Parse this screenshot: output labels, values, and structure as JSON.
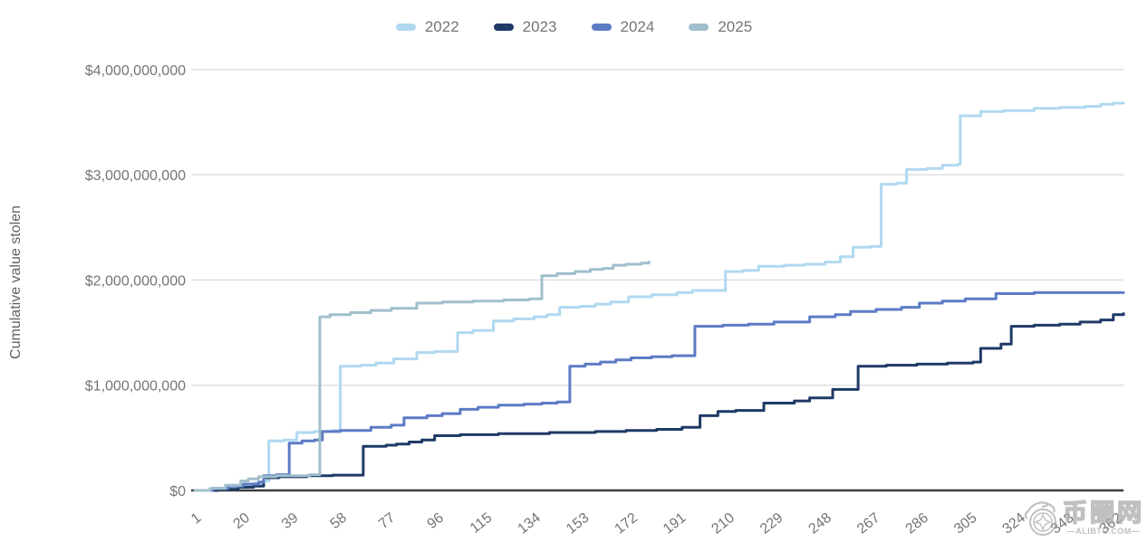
{
  "legend": {
    "items": [
      {
        "label": "2022",
        "color": "#b0d9f0"
      },
      {
        "label": "2023",
        "color": "#1f3a66"
      },
      {
        "label": "2024",
        "color": "#5d7bc5"
      },
      {
        "label": "2025",
        "color": "#a0bfcc"
      }
    ]
  },
  "chart_data": {
    "type": "line",
    "subtype": "step-after",
    "title": "",
    "xlabel": "",
    "ylabel": "Cumulative value stolen",
    "values_unit": "USD billions",
    "xlim": [
      1,
      365
    ],
    "ylim_billions": [
      0,
      4
    ],
    "grid": "horizontal",
    "legend_position": "top-center",
    "x_ticks": [
      1,
      20,
      39,
      58,
      77,
      96,
      115,
      134,
      153,
      172,
      191,
      210,
      229,
      248,
      267,
      286,
      305,
      324,
      343,
      362
    ],
    "y_ticks": [
      {
        "value_billions": 0,
        "label": "$0"
      },
      {
        "value_billions": 1,
        "label": "$1,000,000,000"
      },
      {
        "value_billions": 2,
        "label": "$2,000,000,000"
      },
      {
        "value_billions": 3,
        "label": "$3,000,000,000"
      },
      {
        "value_billions": 4,
        "label": "$4,000,000,000"
      }
    ],
    "series": [
      {
        "name": "2022",
        "color": "#b0d9f0",
        "points_day_value_billions": [
          [
            1,
            0
          ],
          [
            8,
            0.02
          ],
          [
            15,
            0.03
          ],
          [
            20,
            0.05
          ],
          [
            24,
            0.07
          ],
          [
            28,
            0.09
          ],
          [
            30,
            0.47
          ],
          [
            36,
            0.48
          ],
          [
            41,
            0.55
          ],
          [
            48,
            0.56
          ],
          [
            55,
            0.57
          ],
          [
            58,
            1.18
          ],
          [
            66,
            1.19
          ],
          [
            72,
            1.21
          ],
          [
            79,
            1.25
          ],
          [
            88,
            1.31
          ],
          [
            95,
            1.32
          ],
          [
            104,
            1.5
          ],
          [
            110,
            1.52
          ],
          [
            118,
            1.61
          ],
          [
            126,
            1.63
          ],
          [
            134,
            1.65
          ],
          [
            139,
            1.67
          ],
          [
            144,
            1.74
          ],
          [
            152,
            1.75
          ],
          [
            158,
            1.77
          ],
          [
            164,
            1.79
          ],
          [
            171,
            1.84
          ],
          [
            180,
            1.86
          ],
          [
            190,
            1.88
          ],
          [
            196,
            1.9
          ],
          [
            209,
            2.08
          ],
          [
            216,
            2.09
          ],
          [
            222,
            2.13
          ],
          [
            232,
            2.14
          ],
          [
            240,
            2.15
          ],
          [
            248,
            2.17
          ],
          [
            254,
            2.22
          ],
          [
            259,
            2.31
          ],
          [
            266,
            2.32
          ],
          [
            270,
            2.91
          ],
          [
            276,
            2.92
          ],
          [
            280,
            3.05
          ],
          [
            288,
            3.06
          ],
          [
            294,
            3.09
          ],
          [
            300,
            3.1
          ],
          [
            301,
            3.56
          ],
          [
            309,
            3.6
          ],
          [
            318,
            3.61
          ],
          [
            330,
            3.63
          ],
          [
            340,
            3.64
          ],
          [
            350,
            3.65
          ],
          [
            356,
            3.67
          ],
          [
            361,
            3.68
          ],
          [
            365,
            3.68
          ]
        ]
      },
      {
        "name": "2023",
        "color": "#1f3a66",
        "points_day_value_billions": [
          [
            1,
            0
          ],
          [
            10,
            0.01
          ],
          [
            18,
            0.03
          ],
          [
            24,
            0.04
          ],
          [
            28,
            0.12
          ],
          [
            34,
            0.13
          ],
          [
            45,
            0.14
          ],
          [
            55,
            0.145
          ],
          [
            67,
            0.42
          ],
          [
            76,
            0.43
          ],
          [
            80,
            0.44
          ],
          [
            85,
            0.46
          ],
          [
            90,
            0.48
          ],
          [
            95,
            0.52
          ],
          [
            105,
            0.53
          ],
          [
            120,
            0.54
          ],
          [
            140,
            0.55
          ],
          [
            158,
            0.56
          ],
          [
            170,
            0.57
          ],
          [
            182,
            0.58
          ],
          [
            192,
            0.6
          ],
          [
            199,
            0.71
          ],
          [
            206,
            0.75
          ],
          [
            213,
            0.76
          ],
          [
            224,
            0.83
          ],
          [
            236,
            0.85
          ],
          [
            242,
            0.88
          ],
          [
            251,
            0.96
          ],
          [
            261,
            1.18
          ],
          [
            272,
            1.19
          ],
          [
            284,
            1.2
          ],
          [
            296,
            1.21
          ],
          [
            306,
            1.22
          ],
          [
            309,
            1.35
          ],
          [
            317,
            1.39
          ],
          [
            321,
            1.56
          ],
          [
            330,
            1.57
          ],
          [
            340,
            1.58
          ],
          [
            348,
            1.6
          ],
          [
            356,
            1.62
          ],
          [
            361,
            1.67
          ],
          [
            365,
            1.68
          ]
        ]
      },
      {
        "name": "2024",
        "color": "#5d7bc5",
        "points_day_value_billions": [
          [
            1,
            0
          ],
          [
            8,
            0.02
          ],
          [
            14,
            0.04
          ],
          [
            20,
            0.06
          ],
          [
            26,
            0.08
          ],
          [
            28,
            0.14
          ],
          [
            33,
            0.15
          ],
          [
            38,
            0.45
          ],
          [
            43,
            0.47
          ],
          [
            48,
            0.48
          ],
          [
            51,
            0.56
          ],
          [
            58,
            0.57
          ],
          [
            70,
            0.6
          ],
          [
            78,
            0.62
          ],
          [
            83,
            0.69
          ],
          [
            92,
            0.71
          ],
          [
            98,
            0.73
          ],
          [
            105,
            0.77
          ],
          [
            112,
            0.79
          ],
          [
            120,
            0.81
          ],
          [
            130,
            0.82
          ],
          [
            137,
            0.83
          ],
          [
            143,
            0.84
          ],
          [
            148,
            1.18
          ],
          [
            154,
            1.2
          ],
          [
            160,
            1.22
          ],
          [
            166,
            1.24
          ],
          [
            172,
            1.26
          ],
          [
            180,
            1.27
          ],
          [
            188,
            1.28
          ],
          [
            197,
            1.56
          ],
          [
            208,
            1.57
          ],
          [
            218,
            1.58
          ],
          [
            228,
            1.6
          ],
          [
            242,
            1.65
          ],
          [
            252,
            1.67
          ],
          [
            258,
            1.7
          ],
          [
            268,
            1.72
          ],
          [
            278,
            1.74
          ],
          [
            285,
            1.78
          ],
          [
            294,
            1.8
          ],
          [
            303,
            1.82
          ],
          [
            315,
            1.87
          ],
          [
            330,
            1.88
          ],
          [
            365,
            1.88
          ]
        ]
      },
      {
        "name": "2025",
        "color": "#a0bfcc",
        "points_day_value_billions": [
          [
            1,
            0
          ],
          [
            7,
            0.02
          ],
          [
            13,
            0.05
          ],
          [
            19,
            0.09
          ],
          [
            22,
            0.11
          ],
          [
            26,
            0.13
          ],
          [
            33,
            0.14
          ],
          [
            46,
            0.15
          ],
          [
            50,
            1.65
          ],
          [
            54,
            1.67
          ],
          [
            62,
            1.69
          ],
          [
            70,
            1.71
          ],
          [
            78,
            1.73
          ],
          [
            88,
            1.78
          ],
          [
            98,
            1.79
          ],
          [
            110,
            1.8
          ],
          [
            122,
            1.81
          ],
          [
            132,
            1.82
          ],
          [
            137,
            2.04
          ],
          [
            143,
            2.06
          ],
          [
            150,
            2.08
          ],
          [
            156,
            2.1
          ],
          [
            161,
            2.11
          ],
          [
            165,
            2.14
          ],
          [
            170,
            2.15
          ],
          [
            176,
            2.16
          ],
          [
            179,
            2.17
          ]
        ]
      }
    ]
  },
  "watermark": {
    "cn_text": "币圈网",
    "sub_text": "—ALIBTC.COM—"
  },
  "colors": {
    "grid": "#e0e0e0",
    "axis_baseline": "#3d3d3d",
    "tick_text": "#757575",
    "axis_title_text": "#616161",
    "watermark": "#ababab"
  }
}
